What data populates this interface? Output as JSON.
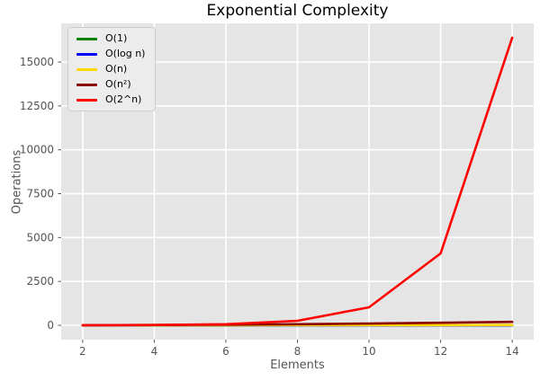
{
  "chart_data": {
    "type": "line",
    "title": "Exponential Complexity",
    "xlabel": "Elements",
    "ylabel": "Operations",
    "x": [
      2,
      4,
      6,
      8,
      10,
      12,
      14
    ],
    "series": [
      {
        "name": "O(1)",
        "color": "#008000",
        "values": [
          1,
          1,
          1,
          1,
          1,
          1,
          1
        ]
      },
      {
        "name": "O(log n)",
        "color": "#0000ff",
        "values": [
          1,
          2,
          2.58,
          3,
          3.32,
          3.58,
          3.81
        ]
      },
      {
        "name": "O(n)",
        "color": "#ffd700",
        "values": [
          2,
          4,
          6,
          8,
          10,
          12,
          14
        ]
      },
      {
        "name": "O(n²)",
        "color": "#8b0000",
        "values": [
          4,
          16,
          36,
          64,
          100,
          144,
          196
        ]
      },
      {
        "name": "O(2^n)",
        "color": "#ff0000",
        "values": [
          4,
          16,
          64,
          256,
          1024,
          4096,
          16384
        ]
      }
    ],
    "xticks": [
      2,
      4,
      6,
      8,
      10,
      12,
      14
    ],
    "yticks": [
      0,
      2500,
      5000,
      7500,
      10000,
      12500,
      15000
    ],
    "xlim": [
      1.4,
      14.6
    ],
    "ylim": [
      -819,
      17203
    ],
    "grid": true,
    "legend_position": "upper-left",
    "plot_bg": "#e5e5e5",
    "grid_color": "#ffffff",
    "tick_color": "#555555"
  }
}
